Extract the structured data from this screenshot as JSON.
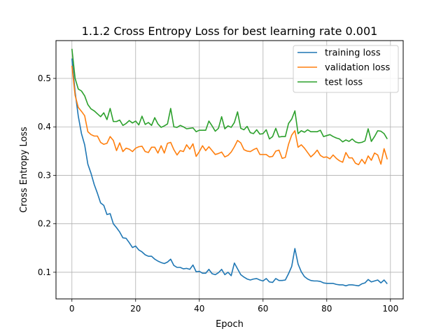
{
  "chart_data": {
    "type": "line",
    "title": "1.1.2 Cross Entropy Loss for best learning rate 0.001",
    "xlabel": "Epoch",
    "ylabel": "Cross Entropy Loss",
    "xlim": [
      -5,
      104
    ],
    "ylim": [
      0.045,
      0.578
    ],
    "xticks": [
      0,
      20,
      40,
      60,
      80,
      100
    ],
    "xtick_labels": [
      "0",
      "20",
      "40",
      "60",
      "80",
      "100"
    ],
    "yticks": [
      0.1,
      0.2,
      0.3,
      0.4,
      0.5
    ],
    "ytick_labels": [
      "0.1",
      "0.2",
      "0.3",
      "0.4",
      "0.5"
    ],
    "grid": true,
    "legend_position": "top-right",
    "series": [
      {
        "name": "training loss",
        "color": "#1f77b4",
        "values": [
          0.541,
          0.472,
          0.422,
          0.386,
          0.363,
          0.323,
          0.304,
          0.281,
          0.263,
          0.243,
          0.238,
          0.219,
          0.221,
          0.2,
          0.192,
          0.183,
          0.171,
          0.17,
          0.161,
          0.151,
          0.154,
          0.146,
          0.142,
          0.136,
          0.133,
          0.133,
          0.127,
          0.123,
          0.12,
          0.118,
          0.121,
          0.127,
          0.114,
          0.11,
          0.11,
          0.107,
          0.108,
          0.106,
          0.115,
          0.101,
          0.102,
          0.098,
          0.098,
          0.106,
          0.097,
          0.095,
          0.099,
          0.106,
          0.095,
          0.1,
          0.093,
          0.119,
          0.107,
          0.095,
          0.09,
          0.086,
          0.084,
          0.086,
          0.087,
          0.084,
          0.082,
          0.087,
          0.08,
          0.079,
          0.087,
          0.083,
          0.083,
          0.084,
          0.097,
          0.112,
          0.149,
          0.117,
          0.101,
          0.091,
          0.086,
          0.083,
          0.082,
          0.082,
          0.081,
          0.078,
          0.077,
          0.077,
          0.077,
          0.075,
          0.074,
          0.074,
          0.072,
          0.074,
          0.074,
          0.073,
          0.072,
          0.076,
          0.078,
          0.085,
          0.08,
          0.082,
          0.084,
          0.078,
          0.084,
          0.076
        ]
      },
      {
        "name": "validation loss",
        "color": "#ff7f0e",
        "values": [
          0.526,
          0.465,
          0.44,
          0.432,
          0.423,
          0.39,
          0.384,
          0.381,
          0.381,
          0.368,
          0.364,
          0.366,
          0.38,
          0.372,
          0.351,
          0.367,
          0.349,
          0.356,
          0.354,
          0.349,
          0.356,
          0.359,
          0.36,
          0.349,
          0.347,
          0.358,
          0.358,
          0.346,
          0.361,
          0.346,
          0.366,
          0.368,
          0.353,
          0.342,
          0.351,
          0.349,
          0.363,
          0.354,
          0.365,
          0.339,
          0.349,
          0.361,
          0.351,
          0.359,
          0.351,
          0.343,
          0.345,
          0.348,
          0.338,
          0.341,
          0.348,
          0.359,
          0.372,
          0.367,
          0.353,
          0.35,
          0.349,
          0.353,
          0.356,
          0.343,
          0.343,
          0.343,
          0.338,
          0.339,
          0.35,
          0.352,
          0.335,
          0.337,
          0.364,
          0.383,
          0.392,
          0.358,
          0.363,
          0.356,
          0.347,
          0.338,
          0.344,
          0.352,
          0.341,
          0.337,
          0.338,
          0.334,
          0.342,
          0.335,
          0.33,
          0.327,
          0.347,
          0.336,
          0.336,
          0.325,
          0.322,
          0.333,
          0.324,
          0.34,
          0.331,
          0.346,
          0.342,
          0.323,
          0.355,
          0.333
        ]
      },
      {
        "name": "test loss",
        "color": "#2ca02c",
        "values": [
          0.561,
          0.5,
          0.478,
          0.474,
          0.464,
          0.446,
          0.437,
          0.433,
          0.427,
          0.421,
          0.429,
          0.415,
          0.438,
          0.411,
          0.411,
          0.414,
          0.403,
          0.407,
          0.413,
          0.408,
          0.412,
          0.404,
          0.422,
          0.405,
          0.409,
          0.403,
          0.419,
          0.406,
          0.399,
          0.402,
          0.406,
          0.438,
          0.4,
          0.399,
          0.403,
          0.4,
          0.396,
          0.397,
          0.398,
          0.39,
          0.393,
          0.393,
          0.393,
          0.412,
          0.402,
          0.391,
          0.397,
          0.421,
          0.396,
          0.402,
          0.399,
          0.409,
          0.431,
          0.397,
          0.394,
          0.401,
          0.388,
          0.386,
          0.394,
          0.385,
          0.386,
          0.394,
          0.375,
          0.38,
          0.397,
          0.379,
          0.38,
          0.38,
          0.407,
          0.416,
          0.433,
          0.386,
          0.392,
          0.389,
          0.394,
          0.39,
          0.39,
          0.39,
          0.393,
          0.38,
          0.382,
          0.384,
          0.38,
          0.377,
          0.375,
          0.369,
          0.373,
          0.37,
          0.375,
          0.369,
          0.367,
          0.368,
          0.371,
          0.396,
          0.37,
          0.38,
          0.392,
          0.391,
          0.386,
          0.375
        ]
      }
    ]
  }
}
